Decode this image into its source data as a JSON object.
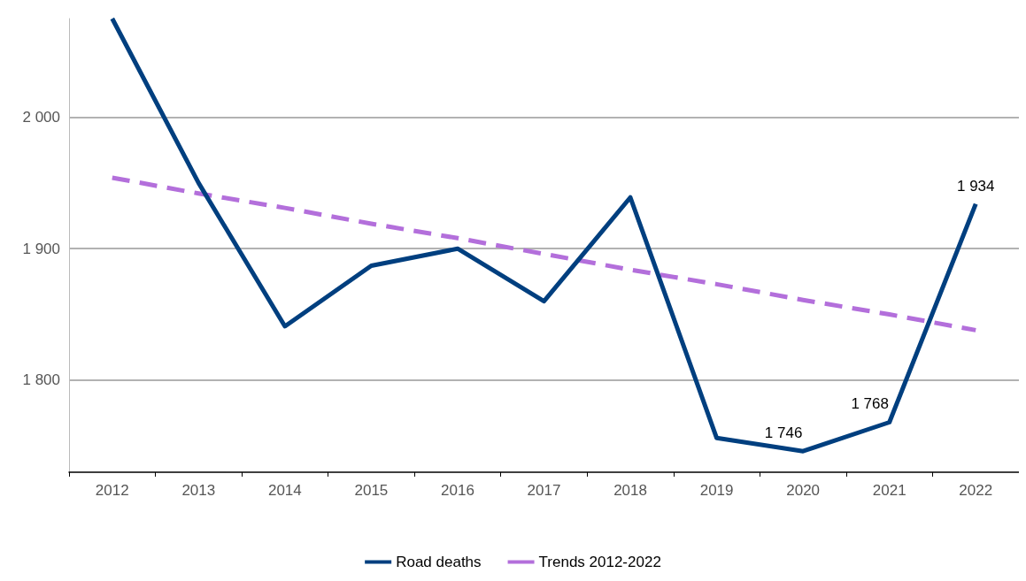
{
  "chart_data": {
    "type": "line",
    "categories": [
      "2012",
      "2013",
      "2014",
      "2015",
      "2016",
      "2017",
      "2018",
      "2019",
      "2020",
      "2021",
      "2022"
    ],
    "series": [
      {
        "name": "Road deaths",
        "color": "#003f7f",
        "values": [
          2075,
          1950,
          1841,
          1887,
          1900,
          1860,
          1939,
          1756,
          1746,
          1768,
          1934
        ],
        "value_labels": [
          null,
          null,
          null,
          null,
          null,
          null,
          null,
          null,
          "1 746",
          "1 768",
          "1 934"
        ],
        "line_style": "solid"
      },
      {
        "name": "Trends 2012-2022",
        "color": "#b36fdb",
        "values": [
          1954,
          1942,
          1931,
          1919,
          1908,
          1896,
          1884,
          1873,
          1861,
          1850,
          1838
        ],
        "line_style": "dashed"
      }
    ],
    "ylim": [
      1730,
      2075
    ],
    "yticks": [
      {
        "value": 1800,
        "label": "1 800"
      },
      {
        "value": 1900,
        "label": "1 900"
      },
      {
        "value": 2000,
        "label": "2 000"
      }
    ],
    "grid": "y",
    "legend": "bottom",
    "marker": "none"
  }
}
